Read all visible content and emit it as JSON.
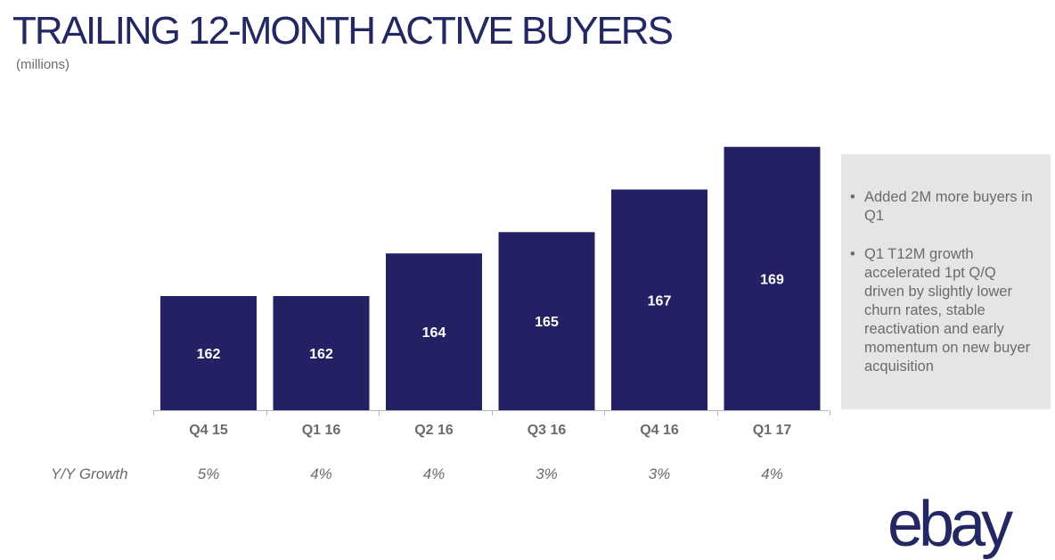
{
  "chart_data": {
    "type": "bar",
    "title": "TRAILING 12-MONTH ACTIVE BUYERS",
    "subtitle": "(millions)",
    "categories": [
      "Q4 15",
      "Q1 16",
      "Q2 16",
      "Q3 16",
      "Q4 16",
      "Q1 17"
    ],
    "values": [
      162,
      162,
      164,
      165,
      167,
      169
    ],
    "data_labels": [
      "162",
      "162",
      "164",
      "165",
      "167",
      "169"
    ],
    "bar_color": "#232064",
    "label_color": "#ffffff",
    "growth_label": "Y/Y Growth",
    "growth": [
      "5%",
      "4%",
      "4%",
      "3%",
      "3%",
      "4%"
    ],
    "grid": false,
    "legend": "none"
  },
  "callout": {
    "bullets": [
      "Added 2M more buyers in Q1",
      "Q1 T12M growth accelerated 1pt Q/Q driven by slightly lower churn rates, stable reactivation and early momentum on new buyer acquisition"
    ],
    "background": "#e5e5e4"
  },
  "logo": {
    "text": "ebay",
    "color": "#232862"
  }
}
